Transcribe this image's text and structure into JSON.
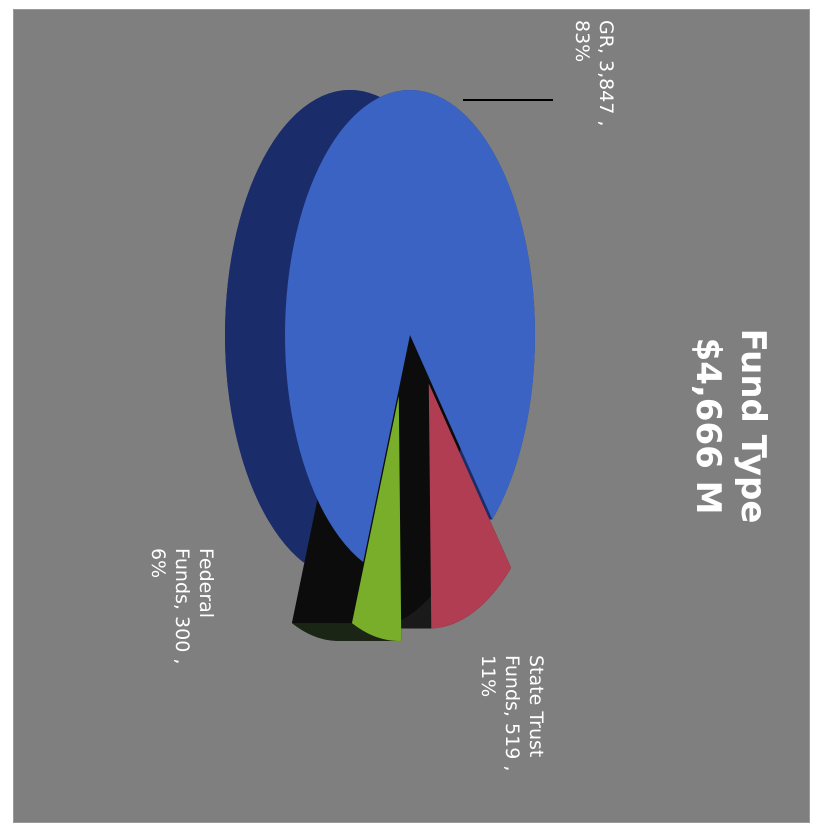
{
  "chart_data": {
    "type": "pie",
    "title": "Fund Type",
    "subtitle": "$4,666 M",
    "unit": "M",
    "slices": [
      {
        "label_lines": [
          "GR, 3,847 ,",
          "83%"
        ],
        "name": "GR",
        "value": 3847,
        "percent": 83,
        "color": "#3a63c4",
        "dark": "#1a2d6a"
      },
      {
        "label_lines": [
          "State Trust",
          "Funds, 519 ,",
          "11%"
        ],
        "name": "State Trust Funds",
        "value": 519,
        "percent": 11,
        "color": "#b03d52",
        "dark": "#1a1a1a"
      },
      {
        "label_lines": [
          "Federal",
          "Funds, 300 ,",
          "6%"
        ],
        "name": "Federal Funds",
        "value": 300,
        "percent": 6,
        "color": "#79ae2a",
        "dark": "#1b2516"
      }
    ],
    "orientation": "rotated 90° clockwise",
    "style": "3d exploded"
  }
}
